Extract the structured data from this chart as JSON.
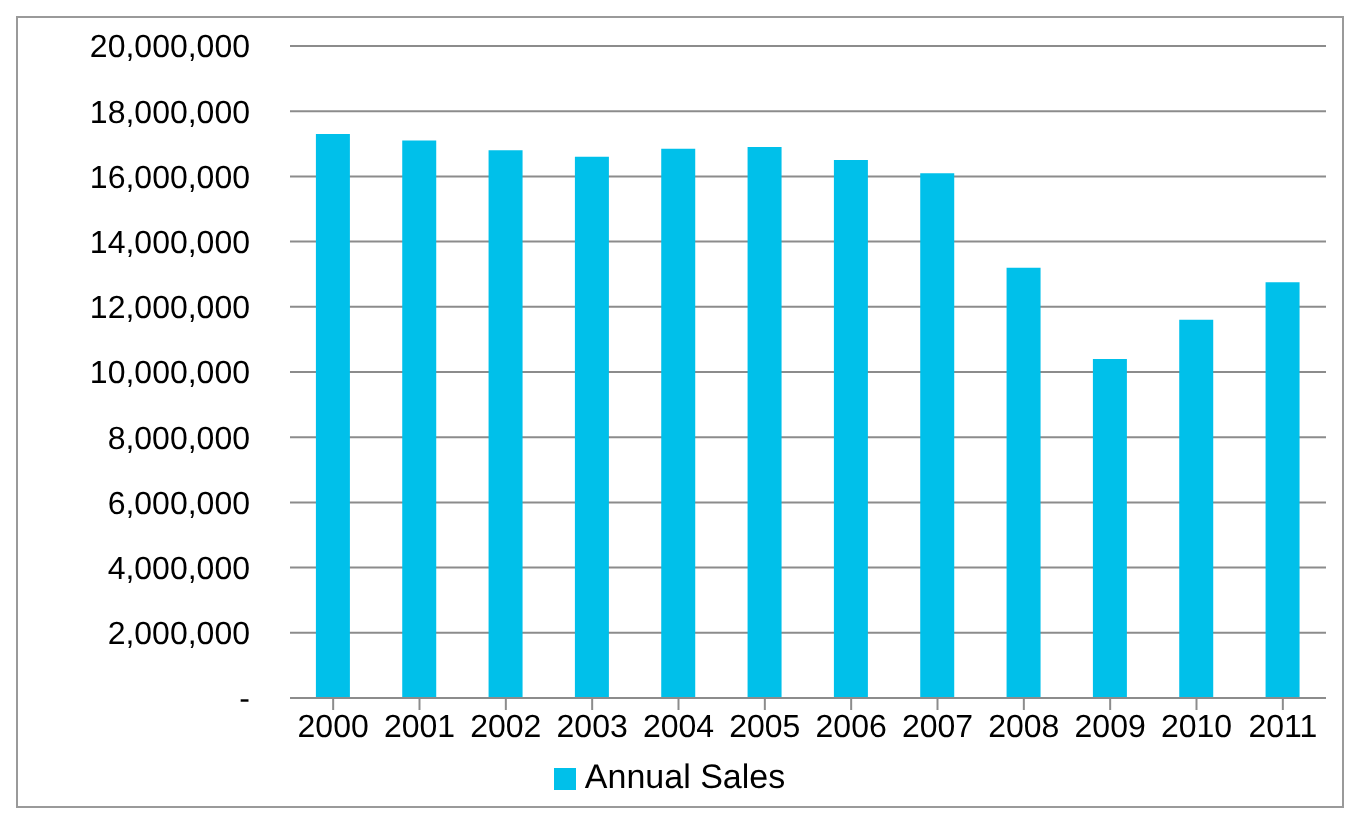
{
  "chart_data": {
    "type": "bar",
    "categories": [
      "2000",
      "2001",
      "2002",
      "2003",
      "2004",
      "2005",
      "2006",
      "2007",
      "2008",
      "2009",
      "2010",
      "2011"
    ],
    "series": [
      {
        "name": "Annual Sales",
        "color": "#00c0ea",
        "values": [
          17300000,
          17100000,
          16800000,
          16600000,
          16850000,
          16900000,
          16500000,
          16100000,
          13200000,
          10400000,
          11600000,
          12750000
        ]
      }
    ],
    "ylim": [
      0,
      20000000
    ],
    "yticks": [
      {
        "value": 0,
        "label": "-"
      },
      {
        "value": 2000000,
        "label": "2,000,000"
      },
      {
        "value": 4000000,
        "label": "4,000,000"
      },
      {
        "value": 6000000,
        "label": "6,000,000"
      },
      {
        "value": 8000000,
        "label": "8,000,000"
      },
      {
        "value": 10000000,
        "label": "10,000,000"
      },
      {
        "value": 12000000,
        "label": "12,000,000"
      },
      {
        "value": 14000000,
        "label": "14,000,000"
      },
      {
        "value": 16000000,
        "label": "16,000,000"
      },
      {
        "value": 18000000,
        "label": "18,000,000"
      },
      {
        "value": 20000000,
        "label": "20,000,000"
      }
    ],
    "grid": "y",
    "legend": "bottom"
  }
}
